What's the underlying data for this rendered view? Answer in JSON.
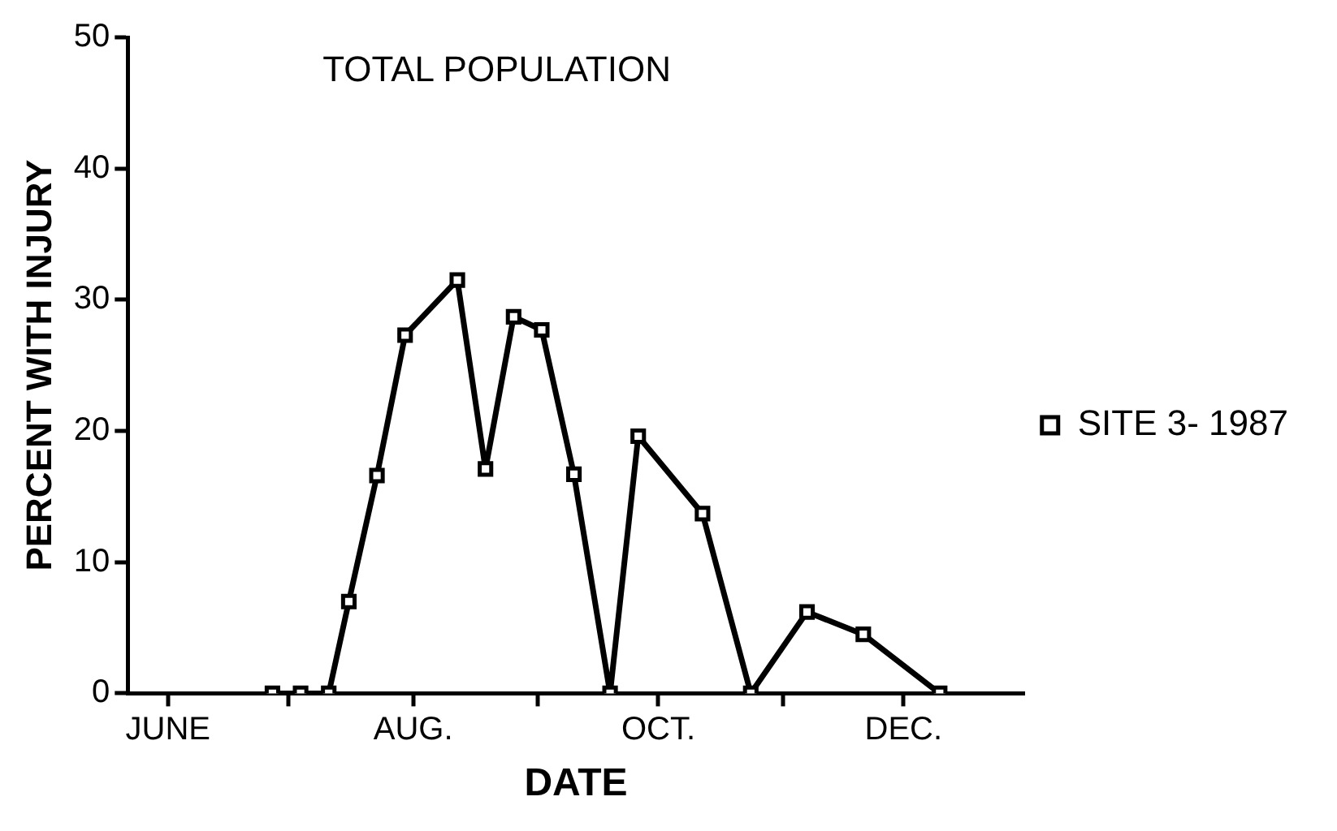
{
  "chart_data": {
    "type": "line",
    "title": "TOTAL POPULATION",
    "xlabel": "DATE",
    "ylabel": "PERCENT WITH INJURY",
    "series": [
      {
        "name": "SITE 3- 1987",
        "color": "#000000",
        "x": [
          "--06-27",
          "--07-04",
          "--07-11",
          "--07-16",
          "--07-23",
          "--07-30",
          "--08-12",
          "--08-19",
          "--08-26",
          "--09-02",
          "--09-10",
          "--09-19",
          "--09-26",
          "--10-12",
          "--10-24",
          "--11-07",
          "--11-21",
          "--12-10"
        ],
        "values": [
          0,
          0,
          0,
          7,
          16.6,
          27.3,
          31.5,
          17.1,
          28.7,
          27.7,
          16.7,
          0,
          19.6,
          13.7,
          0,
          6.2,
          4.5,
          0
        ]
      }
    ],
    "xlim": [
      "--05-22",
      "--12-31"
    ],
    "xticks": [
      {
        "value": "--06-01",
        "label": "JUNE"
      },
      {
        "value": "--07-01",
        "label": null
      },
      {
        "value": "--08-01",
        "label": "AUG."
      },
      {
        "value": "--09-01",
        "label": null
      },
      {
        "value": "--10-01",
        "label": "OCT."
      },
      {
        "value": "--11-01",
        "label": null
      },
      {
        "value": "--12-01",
        "label": "DEC."
      }
    ],
    "ylim": [
      0,
      50
    ],
    "yticks": [
      0,
      10,
      20,
      30,
      40,
      50
    ],
    "grid": false,
    "legend": "right",
    "marker": "square",
    "line_style": "solid"
  }
}
